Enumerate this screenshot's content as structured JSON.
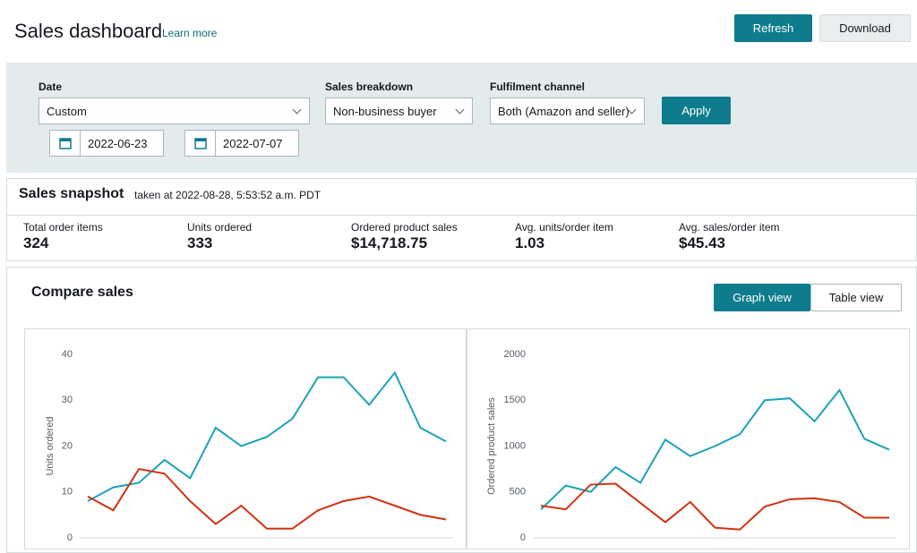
{
  "header": {
    "title": "Sales dashboard",
    "link": "Learn more",
    "buttons": [
      "Refresh",
      "Download"
    ]
  },
  "filters": {
    "date": {
      "label": "Date",
      "value": "Custom",
      "from": "2022-06-23",
      "to": "2022-07-07"
    },
    "breakdown": {
      "label": "Sales breakdown",
      "value": "Non-business buyer"
    },
    "channel": {
      "label": "Fulfilment channel",
      "value": "Both (Amazon and seller)"
    },
    "apply": "Apply"
  },
  "snapshot": {
    "title": "Sales snapshot",
    "taken": "taken at 2022-08-28, 5:53:52 a.m. PDT",
    "metrics": [
      {
        "label": "Total order items",
        "value": "324"
      },
      {
        "label": "Units ordered",
        "value": "333"
      },
      {
        "label": "Ordered product sales",
        "value": "$14,718.75"
      },
      {
        "label": "Avg. units/order item",
        "value": "1.03"
      },
      {
        "label": "Avg. sales/order item",
        "value": "$45.43"
      }
    ]
  },
  "compare": {
    "title": "Compare sales",
    "views": [
      "Graph view",
      "Table view"
    ],
    "charts": [
      {
        "type": "line",
        "y_label": "Units ordered",
        "ylim": [
          0,
          40
        ],
        "yticks": [
          0,
          10,
          20,
          30,
          40
        ],
        "series": [
          {
            "color": "#1ba3b3",
            "values": [
              8,
              11,
              12,
              17,
              13,
              24,
              20,
              22,
              26,
              35,
              35,
              29,
              36,
              24,
              21
            ]
          },
          {
            "color": "#d13212",
            "values": [
              9,
              6,
              15,
              14,
              8,
              3,
              7,
              2,
              2,
              6,
              8,
              9,
              7,
              5,
              4
            ]
          }
        ]
      },
      {
        "type": "line",
        "y_label": "Ordered product sales",
        "ylim": [
          0,
          2000
        ],
        "yticks": [
          0,
          500,
          1000,
          1500,
          2000
        ],
        "series": [
          {
            "color": "#1ba3b3",
            "values": [
              310,
              570,
              500,
              770,
              600,
              1070,
              890,
              1000,
              1130,
              1500,
              1520,
              1270,
              1610,
              1080,
              960
            ]
          },
          {
            "color": "#d13212",
            "values": [
              350,
              310,
              580,
              590,
              380,
              170,
              390,
              110,
              90,
              340,
              420,
              430,
              390,
              220,
              220
            ]
          }
        ]
      }
    ]
  }
}
